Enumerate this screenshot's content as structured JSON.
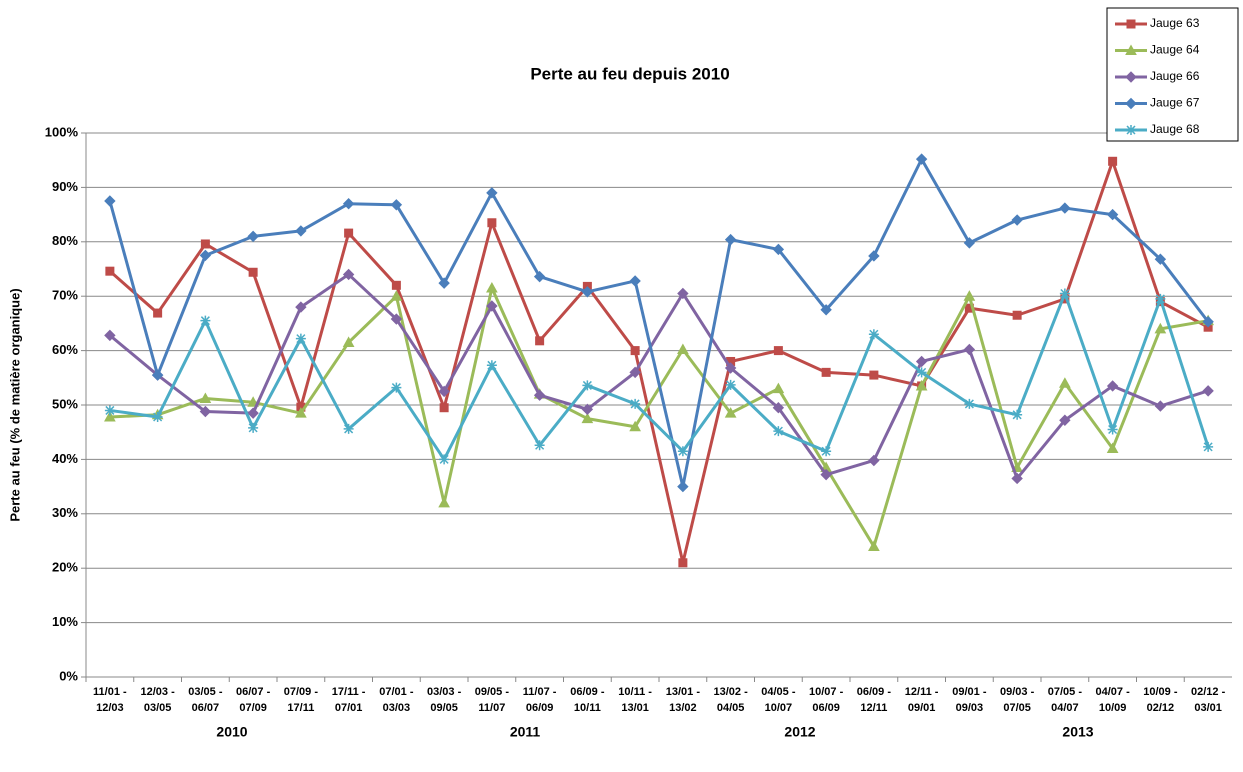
{
  "chart_data": {
    "type": "line",
    "title": "Perte au feu depuis 2010",
    "y_label": "Perte au feu (% de matière organique)",
    "categories": [
      "11/01 - 12/03",
      "12/03 - 03/05",
      "03/05 - 06/07",
      "06/07 - 07/09",
      "07/09 - 17/11",
      "17/11 - 07/01",
      "07/01 - 03/03",
      "03/03 - 09/05",
      "09/05 - 11/07",
      "11/07 - 06/09",
      "06/09 - 10/11",
      "10/11 - 13/01",
      "13/01 - 13/02",
      "13/02 - 04/05",
      "04/05 - 10/07",
      "10/07 - 06/09",
      "06/09 - 12/11",
      "12/11 - 09/01",
      "09/01 - 09/03",
      "09/03 - 07/05",
      "07/05 - 04/07",
      "04/07 - 10/09",
      "10/09 - 02/12",
      "02/12 - 03/01"
    ],
    "x_groups": [
      "2010",
      "2011",
      "2012",
      "2013"
    ],
    "series": [
      {
        "name": "Jauge 63",
        "color": "#be4b48",
        "marker": "square",
        "values": [
          74.6,
          66.9,
          79.6,
          74.4,
          49.6,
          81.6,
          72,
          49.5,
          83.5,
          61.8,
          71.8,
          60,
          21,
          58,
          60,
          56,
          55.5,
          53.5,
          67.8,
          66.5,
          69.5,
          94.8,
          69,
          64.3
        ]
      },
      {
        "name": "Jauge 64",
        "color": "#9bbb59",
        "marker": "triangle",
        "values": [
          47.8,
          48.2,
          51.2,
          50.5,
          48.5,
          61.5,
          70,
          32,
          71.5,
          52,
          47.5,
          46,
          60.2,
          48.5,
          53,
          38.5,
          24,
          53.5,
          70,
          38.5,
          54,
          42,
          64,
          65.5
        ]
      },
      {
        "name": "Jauge 66",
        "color": "#8064a2",
        "marker": "diamond",
        "values": [
          62.8,
          55.5,
          48.8,
          48.5,
          68,
          74,
          65.8,
          52.5,
          68.2,
          51.8,
          49.2,
          56,
          70.5,
          56.8,
          49.5,
          37.2,
          39.8,
          58,
          60.2,
          36.5,
          47.2,
          53.5,
          49.8,
          52.6
        ]
      },
      {
        "name": "Jauge 67",
        "color": "#4a7ebb",
        "marker": "diamond",
        "values": [
          87.5,
          55.5,
          77.5,
          81,
          82,
          87,
          86.8,
          72.4,
          89,
          73.6,
          70.8,
          72.8,
          35,
          80.4,
          78.6,
          67.5,
          77.4,
          95.2,
          79.8,
          84,
          86.2,
          85,
          76.8,
          65.3
        ]
      },
      {
        "name": "Jauge 68",
        "color": "#4bacc6",
        "marker": "asterisk",
        "values": [
          49,
          47.8,
          65.5,
          45.8,
          62.2,
          45.6,
          53.2,
          40,
          57.3,
          42.6,
          53.6,
          50.2,
          41.5,
          53.7,
          45.2,
          41.5,
          63,
          56,
          50.2,
          48.2,
          70.5,
          45.5,
          69.5,
          42.3
        ]
      }
    ],
    "ylim": [
      0,
      100
    ],
    "yticks": [
      {
        "value": 0,
        "label": "0%"
      },
      {
        "value": 10,
        "label": "10%"
      },
      {
        "value": 20,
        "label": "20%"
      },
      {
        "value": 30,
        "label": "30%"
      },
      {
        "value": 40,
        "label": "40%"
      },
      {
        "value": 50,
        "label": "50%"
      },
      {
        "value": 60,
        "label": "60%"
      },
      {
        "value": 70,
        "label": "70%"
      },
      {
        "value": 80,
        "label": "80%"
      },
      {
        "value": 90,
        "label": "90%"
      },
      {
        "value": 100,
        "label": "100%"
      }
    ],
    "grid": true,
    "legend": "top-right"
  }
}
